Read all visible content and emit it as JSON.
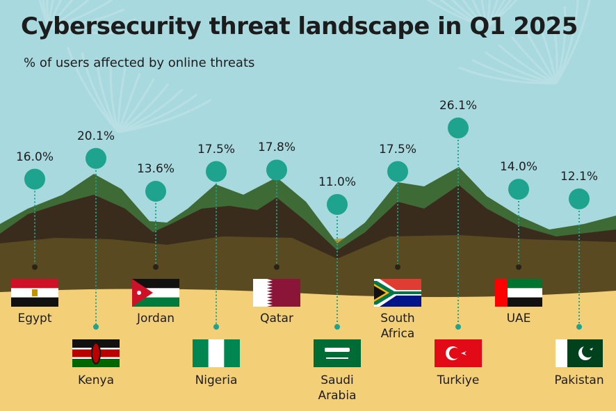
{
  "title": "Cybersecurity threat landscape in Q1 2025",
  "subtitle": "% of users affected by online threats",
  "colors": {
    "sky": "#a8d9df",
    "sand": "#f3cf78",
    "ridge_green": "#3e6a36",
    "ridge_dark": "#3a2c1c",
    "ridge_brown": "#5a4a22",
    "ridge_olive": "#b79a3a",
    "marker": "#1ea38f"
  },
  "chart_data": {
    "type": "scatter",
    "title": "Cybersecurity threat landscape in Q1 2025",
    "subtitle": "% of users affected by online threats",
    "unit": "%",
    "categories": [
      "Egypt",
      "Kenya",
      "Jordan",
      "Nigeria",
      "Qatar",
      "Saudi Arabia",
      "South Africa",
      "Turkiye",
      "UAE",
      "Pakistan"
    ],
    "values": [
      16.0,
      20.1,
      13.6,
      17.5,
      17.8,
      11.0,
      17.5,
      26.1,
      14.0,
      12.1
    ],
    "labels": [
      "16.0%",
      "20.1%",
      "13.6%",
      "17.5%",
      "17.8%",
      "11.0%",
      "17.5%",
      "26.1%",
      "14.0%",
      "12.1%"
    ],
    "country_labels": [
      "Egypt",
      "Kenya",
      "Jordan",
      "Nigeria",
      "Qatar",
      "Saudi\nArabia",
      "South\nAfrica",
      "Turkiye",
      "UAE",
      "Pakistan"
    ]
  }
}
